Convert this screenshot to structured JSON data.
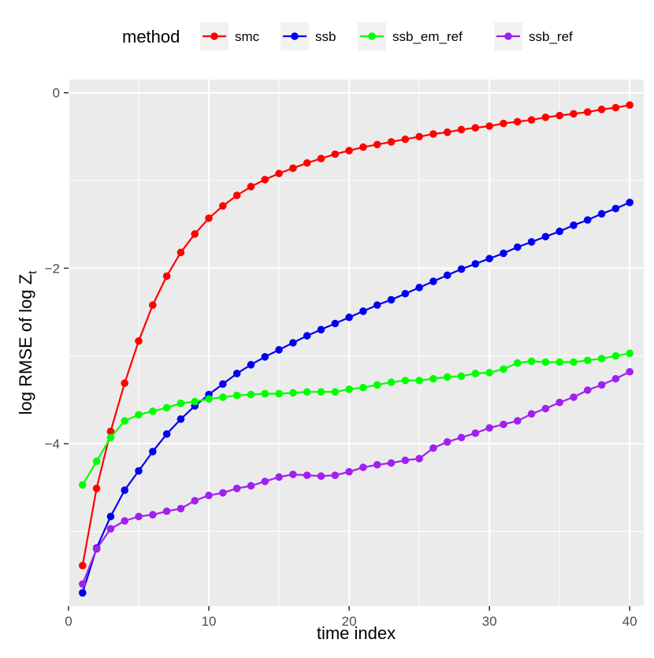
{
  "chart_data": {
    "type": "line",
    "xlabel": "time index",
    "ylabel_main": "log RMSE of log Z",
    "ylabel_subscript": "t",
    "legend": {
      "title": "method",
      "placement": "top"
    },
    "xlim": [
      0,
      41
    ],
    "ylim": [
      -5.85,
      0.15
    ],
    "x_ticks": [
      0,
      10,
      20,
      30,
      40
    ],
    "y_ticks": [
      0,
      -2,
      -4
    ],
    "y_tick_labels": [
      "0",
      "−2",
      "−4"
    ],
    "grid": true,
    "x": [
      1,
      2,
      3,
      4,
      5,
      6,
      7,
      8,
      9,
      10,
      11,
      12,
      13,
      14,
      15,
      16,
      17,
      18,
      19,
      20,
      21,
      22,
      23,
      24,
      25,
      26,
      27,
      28,
      29,
      30,
      31,
      32,
      33,
      34,
      35,
      36,
      37,
      38,
      39,
      40
    ],
    "series": [
      {
        "name": "smc",
        "color": "#ff0000",
        "values": [
          -5.39,
          -4.51,
          -3.86,
          -3.31,
          -2.83,
          -2.42,
          -2.09,
          -1.82,
          -1.61,
          -1.43,
          -1.29,
          -1.17,
          -1.07,
          -0.99,
          -0.92,
          -0.86,
          -0.8,
          -0.75,
          -0.7,
          -0.66,
          -0.62,
          -0.59,
          -0.56,
          -0.53,
          -0.5,
          -0.47,
          -0.45,
          -0.42,
          -0.4,
          -0.38,
          -0.35,
          -0.33,
          -0.31,
          -0.28,
          -0.26,
          -0.24,
          -0.22,
          -0.19,
          -0.17,
          -0.14
        ]
      },
      {
        "name": "ssb",
        "color": "#0000ee",
        "values": [
          -5.7,
          -5.19,
          -4.83,
          -4.53,
          -4.31,
          -4.09,
          -3.89,
          -3.72,
          -3.57,
          -3.44,
          -3.32,
          -3.2,
          -3.1,
          -3.01,
          -2.93,
          -2.85,
          -2.77,
          -2.7,
          -2.63,
          -2.56,
          -2.49,
          -2.42,
          -2.36,
          -2.29,
          -2.22,
          -2.15,
          -2.08,
          -2.01,
          -1.95,
          -1.89,
          -1.83,
          -1.76,
          -1.7,
          -1.64,
          -1.58,
          -1.51,
          -1.45,
          -1.38,
          -1.32,
          -1.25
        ]
      },
      {
        "name": "ssb_em_ref",
        "color": "#00ff00",
        "values": [
          -4.47,
          -4.2,
          -3.93,
          -3.74,
          -3.67,
          -3.63,
          -3.59,
          -3.54,
          -3.52,
          -3.49,
          -3.47,
          -3.45,
          -3.44,
          -3.43,
          -3.43,
          -3.42,
          -3.41,
          -3.41,
          -3.41,
          -3.38,
          -3.36,
          -3.33,
          -3.3,
          -3.28,
          -3.28,
          -3.26,
          -3.24,
          -3.23,
          -3.2,
          -3.19,
          -3.15,
          -3.08,
          -3.06,
          -3.07,
          -3.07,
          -3.07,
          -3.05,
          -3.03,
          -3.0,
          -2.97
        ]
      },
      {
        "name": "ssb_ref",
        "color": "#a020f0",
        "values": [
          -5.6,
          -5.2,
          -4.97,
          -4.88,
          -4.83,
          -4.81,
          -4.77,
          -4.74,
          -4.65,
          -4.59,
          -4.56,
          -4.51,
          -4.48,
          -4.43,
          -4.38,
          -4.35,
          -4.36,
          -4.37,
          -4.36,
          -4.32,
          -4.27,
          -4.24,
          -4.22,
          -4.19,
          -4.17,
          -4.05,
          -3.98,
          -3.93,
          -3.88,
          -3.82,
          -3.78,
          -3.74,
          -3.66,
          -3.6,
          -3.53,
          -3.47,
          -3.39,
          -3.33,
          -3.26,
          -3.18
        ]
      }
    ]
  }
}
